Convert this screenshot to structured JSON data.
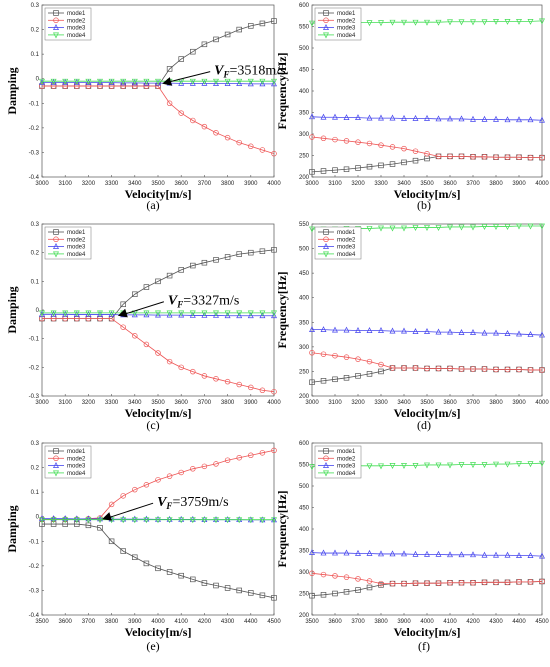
{
  "chart_data": [
    {
      "type": "line",
      "panel_label": "(a)",
      "ylabel": "Damping",
      "xlabel": "Velocity[m/s]",
      "xlim": [
        3000,
        4000
      ],
      "ylim": [
        -0.4,
        0.3
      ],
      "xticks": [
        "3000",
        "3100",
        "3200",
        "3300",
        "3400",
        "3500",
        "3600",
        "3700",
        "3800",
        "3900",
        "4000"
      ],
      "yticks": [
        "-0.4",
        "-0.3",
        "-0.2",
        "-0.1",
        "0",
        "0.1",
        "0.2",
        "0.3"
      ],
      "legend_position": "top-left",
      "x": [
        3000,
        3050,
        3100,
        3150,
        3200,
        3250,
        3300,
        3350,
        3400,
        3450,
        3500,
        3550,
        3600,
        3650,
        3700,
        3750,
        3800,
        3850,
        3900,
        3950,
        4000
      ],
      "series": [
        {
          "name": "mode1",
          "color": "#555555",
          "marker": "square",
          "values": [
            -0.03,
            -0.03,
            -0.03,
            -0.03,
            -0.03,
            -0.03,
            -0.03,
            -0.03,
            -0.03,
            -0.03,
            -0.03,
            0.04,
            0.08,
            0.11,
            0.14,
            0.16,
            0.18,
            0.2,
            0.215,
            0.225,
            0.235
          ]
        },
        {
          "name": "mode2",
          "color": "#ee5555",
          "marker": "circle",
          "values": [
            -0.03,
            -0.03,
            -0.03,
            -0.03,
            -0.03,
            -0.03,
            -0.03,
            -0.03,
            -0.03,
            -0.03,
            -0.03,
            -0.1,
            -0.14,
            -0.17,
            -0.195,
            -0.22,
            -0.24,
            -0.26,
            -0.275,
            -0.29,
            -0.305
          ]
        },
        {
          "name": "mode3",
          "color": "#4444ee",
          "marker": "triangle-up",
          "values": [
            -0.015,
            -0.015,
            -0.015,
            -0.015,
            -0.016,
            -0.016,
            -0.016,
            -0.017,
            -0.017,
            -0.018,
            -0.018,
            -0.018,
            -0.019,
            -0.019,
            -0.019,
            -0.02,
            -0.02,
            -0.02,
            -0.021,
            -0.021,
            -0.021
          ]
        },
        {
          "name": "mode4",
          "color": "#44dd55",
          "marker": "triangle-down",
          "values": [
            -0.01,
            -0.01,
            -0.01,
            -0.01,
            -0.01,
            -0.01,
            -0.01,
            -0.01,
            -0.01,
            -0.01,
            -0.01,
            -0.01,
            -0.01,
            -0.01,
            -0.01,
            -0.01,
            -0.01,
            -0.01,
            -0.01,
            -0.01,
            -0.01
          ]
        }
      ],
      "annotation": {
        "prefix": "V",
        "subscript": "F",
        "text": "=3518m/s",
        "x": 3518,
        "y": -0.02
      }
    },
    {
      "type": "line",
      "panel_label": "(b)",
      "ylabel": "Frequency[Hz]",
      "xlabel": "Velocity[m/s]",
      "xlim": [
        3000,
        4000
      ],
      "ylim": [
        200,
        600
      ],
      "xticks": [
        "3000",
        "3100",
        "3200",
        "3300",
        "3400",
        "3500",
        "3600",
        "3700",
        "3800",
        "3900",
        "4000"
      ],
      "yticks": [
        "200",
        "250",
        "300",
        "350",
        "400",
        "450",
        "500",
        "550",
        "600"
      ],
      "legend_position": "top-left",
      "x": [
        3000,
        3050,
        3100,
        3150,
        3200,
        3250,
        3300,
        3350,
        3400,
        3450,
        3500,
        3550,
        3600,
        3650,
        3700,
        3750,
        3800,
        3850,
        3900,
        3950,
        4000
      ],
      "series": [
        {
          "name": "mode1",
          "color": "#555555",
          "marker": "square",
          "values": [
            212,
            214,
            216,
            218,
            221,
            224,
            227,
            230,
            234,
            238,
            243,
            248,
            248,
            248,
            247,
            247,
            246,
            246,
            246,
            245,
            245
          ]
        },
        {
          "name": "mode2",
          "color": "#ee5555",
          "marker": "circle",
          "values": [
            293,
            290,
            287,
            284,
            281,
            278,
            274,
            270,
            266,
            260,
            254,
            248,
            248,
            248,
            247,
            247,
            246,
            246,
            246,
            245,
            245
          ]
        },
        {
          "name": "mode3",
          "color": "#4444ee",
          "marker": "triangle-up",
          "values": [
            340,
            339,
            339,
            338,
            338,
            337,
            337,
            337,
            336,
            336,
            336,
            335,
            335,
            335,
            334,
            334,
            334,
            333,
            333,
            333,
            332
          ]
        },
        {
          "name": "mode4",
          "color": "#44dd55",
          "marker": "triangle-down",
          "values": [
            558,
            558,
            558,
            559,
            559,
            559,
            559,
            560,
            560,
            560,
            560,
            560,
            561,
            561,
            561,
            561,
            562,
            562,
            562,
            562,
            563
          ]
        }
      ]
    },
    {
      "type": "line",
      "panel_label": "(c)",
      "ylabel": "Damping",
      "xlabel": "Velocity[m/s]",
      "xlim": [
        3000,
        4000
      ],
      "ylim": [
        -0.3,
        0.3
      ],
      "xticks": [
        "3000",
        "3100",
        "3200",
        "3300",
        "3400",
        "3500",
        "3600",
        "3700",
        "3800",
        "3900",
        "4000"
      ],
      "yticks": [
        "-0.3",
        "-0.2",
        "-0.1",
        "0",
        "0.1",
        "0.2",
        "0.3"
      ],
      "legend_position": "top-left",
      "x": [
        3000,
        3050,
        3100,
        3150,
        3200,
        3250,
        3300,
        3350,
        3400,
        3450,
        3500,
        3550,
        3600,
        3650,
        3700,
        3750,
        3800,
        3850,
        3900,
        3950,
        4000
      ],
      "series": [
        {
          "name": "mode1",
          "color": "#555555",
          "marker": "square",
          "values": [
            -0.03,
            -0.03,
            -0.03,
            -0.03,
            -0.03,
            -0.03,
            -0.03,
            0.02,
            0.055,
            0.08,
            0.1,
            0.12,
            0.14,
            0.155,
            0.165,
            0.175,
            0.185,
            0.195,
            0.2,
            0.205,
            0.21
          ]
        },
        {
          "name": "mode2",
          "color": "#ee5555",
          "marker": "circle",
          "values": [
            -0.03,
            -0.03,
            -0.03,
            -0.03,
            -0.03,
            -0.03,
            -0.03,
            -0.06,
            -0.09,
            -0.12,
            -0.15,
            -0.18,
            -0.2,
            -0.215,
            -0.23,
            -0.24,
            -0.25,
            -0.26,
            -0.27,
            -0.28,
            -0.285
          ]
        },
        {
          "name": "mode3",
          "color": "#4444ee",
          "marker": "triangle-up",
          "values": [
            -0.015,
            -0.015,
            -0.015,
            -0.016,
            -0.016,
            -0.016,
            -0.016,
            -0.017,
            -0.017,
            -0.017,
            -0.018,
            -0.018,
            -0.018,
            -0.019,
            -0.019,
            -0.019,
            -0.02,
            -0.02,
            -0.02,
            -0.02,
            -0.02
          ]
        },
        {
          "name": "mode4",
          "color": "#44dd55",
          "marker": "triangle-down",
          "values": [
            -0.01,
            -0.01,
            -0.01,
            -0.01,
            -0.01,
            -0.01,
            -0.01,
            -0.01,
            -0.01,
            -0.01,
            -0.01,
            -0.01,
            -0.01,
            -0.01,
            -0.01,
            -0.01,
            -0.01,
            -0.01,
            -0.01,
            -0.01,
            -0.01
          ]
        }
      ],
      "annotation": {
        "prefix": "V",
        "subscript": "F",
        "text": "=3327m/s",
        "x": 3327,
        "y": -0.02
      }
    },
    {
      "type": "line",
      "panel_label": "(d)",
      "ylabel": "Frequency[Hz]",
      "xlabel": "Velocity[m/s]",
      "xlim": [
        3000,
        4000
      ],
      "ylim": [
        200,
        550
      ],
      "xticks": [
        "3000",
        "3100",
        "3200",
        "3300",
        "3400",
        "3500",
        "3600",
        "3700",
        "3800",
        "3900",
        "4000"
      ],
      "yticks": [
        "200",
        "250",
        "300",
        "350",
        "400",
        "450",
        "500",
        "550"
      ],
      "legend_position": "top-left",
      "x": [
        3000,
        3050,
        3100,
        3150,
        3200,
        3250,
        3300,
        3350,
        3400,
        3450,
        3500,
        3550,
        3600,
        3650,
        3700,
        3750,
        3800,
        3850,
        3900,
        3950,
        4000
      ],
      "series": [
        {
          "name": "mode1",
          "color": "#555555",
          "marker": "square",
          "values": [
            228,
            231,
            234,
            237,
            241,
            245,
            250,
            257,
            257,
            257,
            256,
            256,
            256,
            255,
            255,
            255,
            254,
            254,
            254,
            253,
            253
          ]
        },
        {
          "name": "mode2",
          "color": "#ee5555",
          "marker": "circle",
          "values": [
            288,
            285,
            282,
            279,
            275,
            270,
            264,
            257,
            257,
            257,
            256,
            256,
            256,
            255,
            255,
            255,
            254,
            254,
            254,
            253,
            253
          ]
        },
        {
          "name": "mode3",
          "color": "#4444ee",
          "marker": "triangle-up",
          "values": [
            335,
            335,
            334,
            334,
            333,
            333,
            333,
            332,
            332,
            331,
            331,
            330,
            330,
            329,
            329,
            328,
            328,
            327,
            326,
            325,
            324
          ]
        },
        {
          "name": "mode4",
          "color": "#44dd55",
          "marker": "triangle-down",
          "values": [
            540,
            540,
            540,
            541,
            541,
            541,
            542,
            542,
            542,
            543,
            543,
            543,
            544,
            544,
            544,
            545,
            545,
            545,
            546,
            546,
            546
          ]
        }
      ]
    },
    {
      "type": "line",
      "panel_label": "(e)",
      "ylabel": "Damping",
      "xlabel": "Velocity[m/s]",
      "xlim": [
        3500,
        4500
      ],
      "ylim": [
        -0.4,
        0.3
      ],
      "xticks": [
        "3500",
        "3600",
        "3700",
        "3800",
        "3900",
        "4000",
        "4100",
        "4200",
        "4300",
        "4400",
        "4500"
      ],
      "yticks": [
        "-0.4",
        "-0.3",
        "-0.2",
        "-0.1",
        "0",
        "0.1",
        "0.2",
        "0.3"
      ],
      "legend_position": "top-left",
      "x": [
        3500,
        3550,
        3600,
        3650,
        3700,
        3750,
        3800,
        3850,
        3900,
        3950,
        4000,
        4050,
        4100,
        4150,
        4200,
        4250,
        4300,
        4350,
        4400,
        4450,
        4500
      ],
      "series": [
        {
          "name": "mode1",
          "color": "#555555",
          "marker": "square",
          "values": [
            -0.03,
            -0.03,
            -0.03,
            -0.03,
            -0.035,
            -0.045,
            -0.1,
            -0.14,
            -0.165,
            -0.19,
            -0.21,
            -0.225,
            -0.24,
            -0.255,
            -0.27,
            -0.28,
            -0.29,
            -0.3,
            -0.31,
            -0.32,
            -0.33
          ]
        },
        {
          "name": "mode2",
          "color": "#ee5555",
          "marker": "circle",
          "values": [
            -0.01,
            -0.01,
            -0.01,
            -0.01,
            -0.008,
            -0.005,
            0.05,
            0.085,
            0.11,
            0.13,
            0.15,
            0.165,
            0.18,
            0.195,
            0.205,
            0.215,
            0.23,
            0.24,
            0.25,
            0.26,
            0.27
          ]
        },
        {
          "name": "mode3",
          "color": "#4444ee",
          "marker": "triangle-up",
          "values": [
            -0.008,
            -0.008,
            -0.008,
            -0.009,
            -0.009,
            -0.009,
            -0.01,
            -0.01,
            -0.01,
            -0.01,
            -0.011,
            -0.011,
            -0.011,
            -0.011,
            -0.012,
            -0.012,
            -0.012,
            -0.012,
            -0.013,
            -0.013,
            -0.013
          ]
        },
        {
          "name": "mode4",
          "color": "#44dd55",
          "marker": "triangle-down",
          "values": [
            -0.012,
            -0.012,
            -0.012,
            -0.012,
            -0.012,
            -0.012,
            -0.012,
            -0.012,
            -0.012,
            -0.012,
            -0.012,
            -0.012,
            -0.012,
            -0.012,
            -0.012,
            -0.012,
            -0.012,
            -0.012,
            -0.012,
            -0.012,
            -0.012
          ]
        }
      ],
      "annotation": {
        "prefix": "V",
        "subscript": "F",
        "text": "=3759m/s",
        "x": 3759,
        "y": -0.01
      }
    },
    {
      "type": "line",
      "panel_label": "(f)",
      "ylabel": "Frequency[Hz]",
      "xlabel": "Velocity[m/s]",
      "xlim": [
        3500,
        4500
      ],
      "ylim": [
        200,
        600
      ],
      "xticks": [
        "3500",
        "3600",
        "3700",
        "3800",
        "3900",
        "4000",
        "4100",
        "4200",
        "4300",
        "4400",
        "4500"
      ],
      "yticks": [
        "200",
        "250",
        "300",
        "350",
        "400",
        "450",
        "500",
        "550",
        "600"
      ],
      "legend_position": "top-left",
      "x": [
        3500,
        3550,
        3600,
        3650,
        3700,
        3750,
        3800,
        3850,
        3900,
        3950,
        4000,
        4050,
        4100,
        4150,
        4200,
        4250,
        4300,
        4350,
        4400,
        4450,
        4500
      ],
      "series": [
        {
          "name": "mode1",
          "color": "#555555",
          "marker": "square",
          "values": [
            245,
            247,
            250,
            254,
            258,
            264,
            270,
            273,
            273,
            274,
            274,
            274,
            275,
            275,
            275,
            276,
            276,
            276,
            277,
            277,
            278
          ]
        },
        {
          "name": "mode2",
          "color": "#ee5555",
          "marker": "circle",
          "values": [
            297,
            294,
            291,
            288,
            284,
            279,
            273,
            273,
            273,
            274,
            274,
            274,
            275,
            275,
            275,
            276,
            276,
            276,
            277,
            277,
            278
          ]
        },
        {
          "name": "mode3",
          "color": "#4444ee",
          "marker": "triangle-up",
          "values": [
            345,
            344,
            344,
            344,
            343,
            343,
            342,
            342,
            342,
            341,
            341,
            341,
            340,
            340,
            340,
            339,
            339,
            339,
            338,
            338,
            337
          ]
        },
        {
          "name": "mode4",
          "color": "#44dd55",
          "marker": "triangle-down",
          "values": [
            545,
            545,
            546,
            546,
            547,
            547,
            547,
            548,
            548,
            548,
            549,
            549,
            549,
            550,
            550,
            550,
            551,
            551,
            552,
            552,
            553
          ]
        }
      ]
    }
  ]
}
